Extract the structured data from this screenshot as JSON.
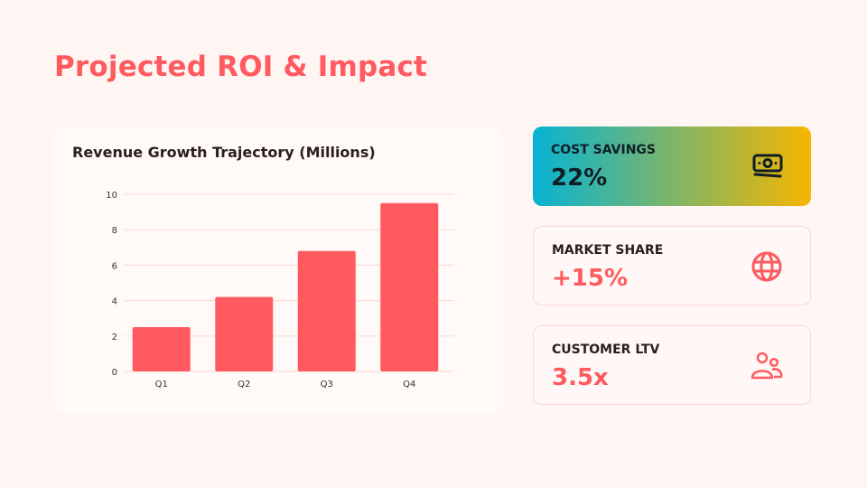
{
  "title": "Projected ROI & Impact",
  "chart_data": {
    "type": "bar",
    "title": "Revenue Growth Trajectory (Millions)",
    "categories": [
      "Q1",
      "Q2",
      "Q3",
      "Q4"
    ],
    "values": [
      2.5,
      4.2,
      6.8,
      9.5
    ],
    "ylim": [
      0,
      10
    ],
    "yticks": [
      0,
      2,
      4,
      6,
      8,
      10
    ],
    "grid": true,
    "bar_color": "#ff5a5f",
    "grid_color": "#ffdcd8"
  },
  "kpis": [
    {
      "label": "COST SAVINGS",
      "value": "22%",
      "icon": "money-icon"
    },
    {
      "label": "MARKET SHARE",
      "value": "+15%",
      "icon": "globe-icon"
    },
    {
      "label": "CUSTOMER LTV",
      "value": "3.5x",
      "icon": "users-icon"
    }
  ],
  "colors": {
    "accent": "#ff5a5f",
    "gradient": [
      "#06b3d4",
      "#f7b500"
    ]
  }
}
